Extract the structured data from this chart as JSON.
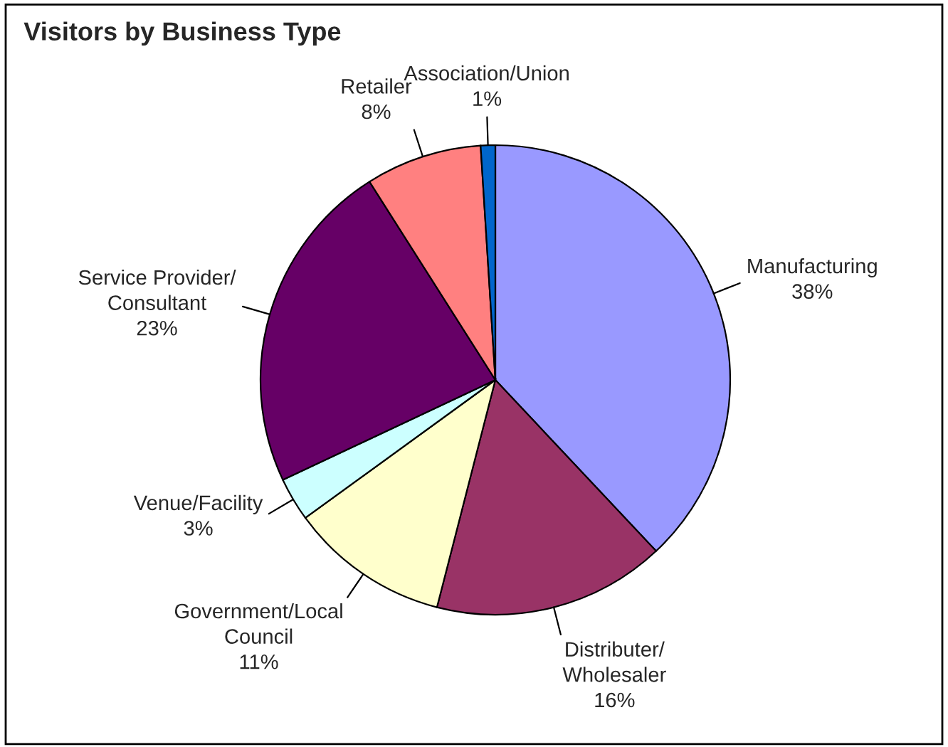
{
  "chart_data": {
    "type": "pie",
    "title": "Visitors by Business Type",
    "categories": [
      "Manufacturing",
      "Distributer/\nWholesaler",
      "Government/Local\nCouncil",
      "Venue/Facility",
      "Service Provider/\nConsultant",
      "Retailer",
      "Association/Union"
    ],
    "values": [
      38,
      16,
      11,
      3,
      23,
      8,
      1
    ],
    "colors": [
      "#9999ff",
      "#993366",
      "#ffffcc",
      "#ccffff",
      "#660066",
      "#ff8080",
      "#0066cc"
    ],
    "value_labels": [
      "38%",
      "16%",
      "11%",
      "3%",
      "23%",
      "8%",
      "1%"
    ],
    "legend": false
  }
}
